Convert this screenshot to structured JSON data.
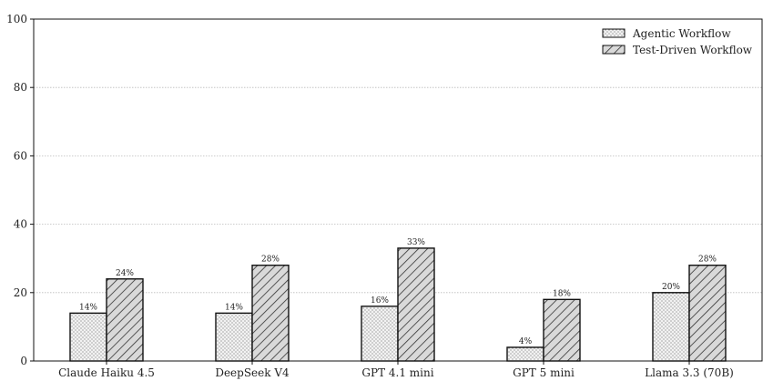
{
  "chart_data": {
    "type": "bar",
    "categories": [
      "Claude Haiku 4.5",
      "DeepSeek V4",
      "GPT 4.1 mini",
      "GPT 5 mini",
      "Llama 3.3 (70B)"
    ],
    "series": [
      {
        "name": "Agentic Workflow",
        "values": [
          14,
          14,
          16,
          4,
          20
        ],
        "labels": [
          "14%",
          "14%",
          "16%",
          "4%",
          "20%"
        ],
        "pattern": "dots"
      },
      {
        "name": "Test-Driven Workflow",
        "values": [
          24,
          28,
          33,
          18,
          28
        ],
        "labels": [
          "24%",
          "28%",
          "33%",
          "18%",
          "28%"
        ],
        "pattern": "hatch"
      }
    ],
    "title": "",
    "xlabel": "",
    "ylabel": "",
    "ylim": [
      0,
      100
    ],
    "yticks": [
      0,
      20,
      40,
      60,
      80,
      100
    ],
    "grid": "horizontal dotted",
    "legend_position": "top-right",
    "colors": {
      "bar_fill": "#e6e6e6",
      "edge": "#111111",
      "grid": "#bbbbbb"
    }
  }
}
